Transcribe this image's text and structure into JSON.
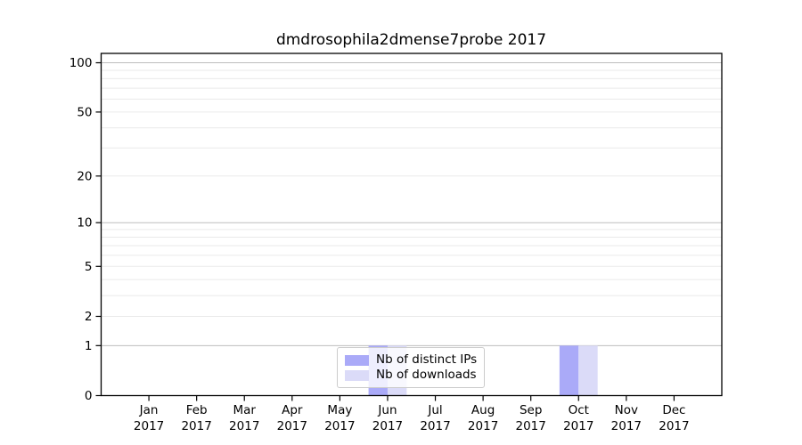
{
  "chart_data": {
    "type": "bar",
    "title": "dmdrosophila2dmense7probe 2017",
    "x_axis": {
      "categories": [
        "Jan",
        "Feb",
        "Mar",
        "Apr",
        "May",
        "Jun",
        "Jul",
        "Aug",
        "Sep",
        "Oct",
        "Nov",
        "Dec"
      ],
      "year_label": "2017"
    },
    "y_axis": {
      "scale": "log1p",
      "min": 0,
      "max": 114,
      "tick_labels": [
        0,
        1,
        2,
        5,
        10,
        20,
        50,
        100
      ],
      "major_gridlines": [
        1,
        10,
        100
      ],
      "minor_gridlines": [
        2,
        3,
        4,
        5,
        6,
        7,
        8,
        9,
        20,
        30,
        40,
        50,
        60,
        70,
        80,
        90
      ]
    },
    "series": [
      {
        "name": "Nb of distinct IPs",
        "color": "#aaaaf8",
        "values": [
          0,
          0,
          0,
          0,
          0,
          1,
          0,
          0,
          0,
          1,
          0,
          0
        ]
      },
      {
        "name": "Nb of downloads",
        "color": "#dbdbf8",
        "values": [
          0,
          0,
          0,
          0,
          0,
          1,
          0,
          0,
          0,
          1,
          0,
          0
        ]
      }
    ],
    "legend": {
      "position": "lower-center-inside-plot",
      "items": [
        {
          "label": "Nb of distinct IPs",
          "color": "#aaaaf8"
        },
        {
          "label": "Nb of downloads",
          "color": "#dbdbf8"
        }
      ]
    },
    "grid": "horizontal-only",
    "colors": {
      "background": "#ffffff",
      "axis": "#000000",
      "major_grid": "#bdbdbd",
      "minor_grid": "#eaeaea",
      "legend_border": "#cccccc"
    }
  }
}
